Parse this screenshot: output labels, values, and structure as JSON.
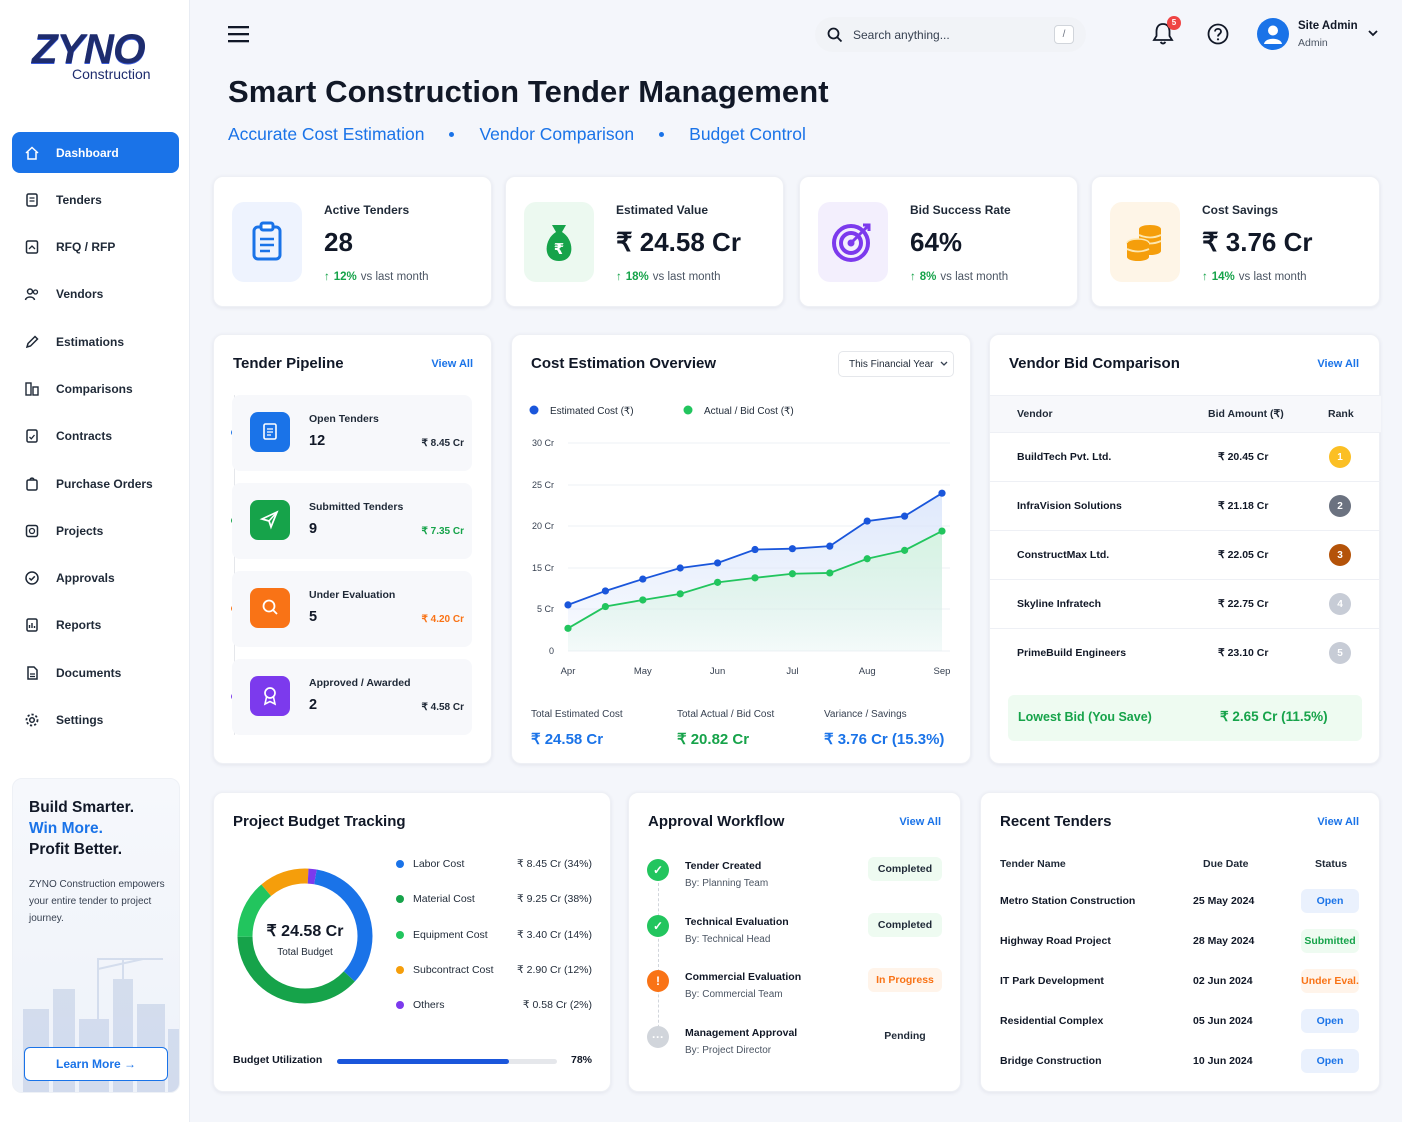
{
  "brand": {
    "logo": "ZYNO",
    "sub": "Construction"
  },
  "nav": [
    {
      "label": "Dashboard",
      "icon": "home-icon"
    },
    {
      "label": "Tenders",
      "icon": "tender-icon"
    },
    {
      "label": "RFQ / RFP",
      "icon": "rfq-icon"
    },
    {
      "label": "Vendors",
      "icon": "vendors-icon"
    },
    {
      "label": "Estimations",
      "icon": "pencil-icon"
    },
    {
      "label": "Comparisons",
      "icon": "compare-icon"
    },
    {
      "label": "Contracts",
      "icon": "contract-icon"
    },
    {
      "label": "Purchase Orders",
      "icon": "cart-icon"
    },
    {
      "label": "Projects",
      "icon": "project-icon"
    },
    {
      "label": "Approvals",
      "icon": "check-icon"
    },
    {
      "label": "Reports",
      "icon": "report-icon"
    },
    {
      "label": "Documents",
      "icon": "document-icon"
    },
    {
      "label": "Settings",
      "icon": "gear-icon"
    }
  ],
  "promo": {
    "line1": "Build Smarter.",
    "line2": "Win More.",
    "line3": "Profit Better.",
    "text": "ZYNO Construction empowers your entire tender to project journey.",
    "button": "Learn More →"
  },
  "topbar": {
    "search_placeholder": "Search anything...",
    "kbd": "/",
    "notifications": "5",
    "user_name": "Site Admin",
    "user_role": "Admin"
  },
  "page": {
    "title": "Smart Construction Tender Management",
    "tags": [
      "Accurate Cost Estimation",
      "Vendor Comparison",
      "Budget Control"
    ]
  },
  "kpis": [
    {
      "label": "Active Tenders",
      "value": "28",
      "delta": "12%",
      "delta_text": "vs last month",
      "color": "#1a73e8"
    },
    {
      "label": "Estimated Value",
      "value": "₹ 24.58 Cr",
      "delta": "18%",
      "delta_text": "vs last month",
      "color": "#16a34a"
    },
    {
      "label": "Bid Success Rate",
      "value": "64%",
      "delta": "8%",
      "delta_text": "vs last month",
      "color": "#7c3aed"
    },
    {
      "label": "Cost Savings",
      "value": "₹ 3.76 Cr",
      "delta": "14%",
      "delta_text": "vs last month",
      "color": "#f59e0b"
    }
  ],
  "pipeline": {
    "title": "Tender Pipeline",
    "view_all": "View All",
    "stages": [
      {
        "label": "Open Tenders",
        "count": "12",
        "amount": "₹ 8.45 Cr",
        "color": "#1a73e8",
        "amount_color": "#1f2937"
      },
      {
        "label": "Submitted Tenders",
        "count": "9",
        "amount": "₹ 7.35 Cr",
        "color": "#16a34a",
        "amount_color": "#16a34a"
      },
      {
        "label": "Under Evaluation",
        "count": "5",
        "amount": "₹ 4.20 Cr",
        "color": "#f97316",
        "amount_color": "#f97316"
      },
      {
        "label": "Approved / Awarded",
        "count": "2",
        "amount": "₹ 4.58 Cr",
        "color": "#7c3aed",
        "amount_color": "#1f2937"
      }
    ]
  },
  "cost": {
    "title": "Cost Estimation Overview",
    "filter": "This Financial Year",
    "summary": [
      {
        "label": "Total Estimated Cost",
        "value": "₹ 24.58 Cr",
        "color": "#1a73e8"
      },
      {
        "label": "Total Actual / Bid Cost",
        "value": "₹ 20.82 Cr",
        "color": "#16a34a"
      },
      {
        "label": "Variance / Savings",
        "value": "₹ 3.76 Cr (15.3%)",
        "color": "#1a73e8"
      }
    ]
  },
  "chart_data": {
    "type": "area",
    "x": [
      "Apr",
      "",
      "May",
      "",
      "Jun",
      "",
      "Jul",
      "",
      "Aug",
      "",
      "Sep"
    ],
    "xticks": [
      "Apr",
      "May",
      "Jun",
      "Jul",
      "Aug",
      "Sep"
    ],
    "yticks": [
      "30 Cr",
      "25 Cr",
      "20 Cr",
      "15 Cr",
      "5 Cr",
      "0"
    ],
    "ylim": [
      0,
      30
    ],
    "series": [
      {
        "name": "Estimated Cost (₹)",
        "color": "#1a56db",
        "values": [
          6,
          9.4,
          12.3,
          15,
          15.6,
          17.2,
          17.3,
          17.6,
          20.6,
          21.2,
          24
        ]
      },
      {
        "name": "Actual / Bid Cost (₹)",
        "color": "#22c55e",
        "values": [
          2.7,
          5.6,
          7.2,
          8.7,
          11.5,
          12.6,
          13.6,
          13.8,
          16.1,
          17.1,
          19.4
        ]
      }
    ]
  },
  "vendors": {
    "title": "Vendor Bid Comparison",
    "view_all": "View All",
    "headers": [
      "Vendor",
      "Bid Amount (₹)",
      "Rank"
    ],
    "rows": [
      {
        "name": "BuildTech Pvt. Ltd.",
        "amount": "₹ 20.45 Cr",
        "rank": "1",
        "color": "#fbbf24"
      },
      {
        "name": "InfraVision Solutions",
        "amount": "₹ 21.18 Cr",
        "rank": "2",
        "color": "#6b7280"
      },
      {
        "name": "ConstructMax Ltd.",
        "amount": "₹ 22.05 Cr",
        "rank": "3",
        "color": "#b45309"
      },
      {
        "name": "Skyline Infratech",
        "amount": "₹ 22.75 Cr",
        "rank": "4",
        "color": "#c7ccd6"
      },
      {
        "name": "PrimeBuild Engineers",
        "amount": "₹ 23.10 Cr",
        "rank": "5",
        "color": "#c7ccd6"
      }
    ],
    "lowest_label": "Lowest Bid (You Save)",
    "lowest_value": "₹ 2.65 Cr (11.5%)"
  },
  "budget": {
    "title": "Project Budget Tracking",
    "total": "₹ 24.58 Cr",
    "total_label": "Total Budget",
    "items": [
      {
        "label": "Labor Cost",
        "amount": "₹ 8.45 Cr (34%)",
        "pct": 34,
        "color": "#1a73e8"
      },
      {
        "label": "Material Cost",
        "amount": "₹ 9.25 Cr (38%)",
        "pct": 38,
        "color": "#16a34a"
      },
      {
        "label": "Equipment Cost",
        "amount": "₹ 3.40 Cr (14%)",
        "pct": 14,
        "color": "#22c55e"
      },
      {
        "label": "Subcontract Cost",
        "amount": "₹ 2.90 Cr (12%)",
        "pct": 12,
        "color": "#f59e0b"
      },
      {
        "label": "Others",
        "amount": "₹ 0.58 Cr   (2%)",
        "pct": 2,
        "color": "#7c3aed"
      }
    ],
    "utilization_label": "Budget Utilization",
    "utilization": "78%",
    "utilization_value": 0.78
  },
  "workflow": {
    "title": "Approval Workflow",
    "view_all": "View All",
    "steps": [
      {
        "title": "Tender Created",
        "by": "By: Planning Team",
        "status": "Completed",
        "state": "done"
      },
      {
        "title": "Technical Evaluation",
        "by": "By: Technical Head",
        "status": "Completed",
        "state": "done"
      },
      {
        "title": "Commercial Evaluation",
        "by": "By: Commercial Team",
        "status": "In Progress",
        "state": "progress"
      },
      {
        "title": "Management Approval",
        "by": "By: Project Director",
        "status": "Pending",
        "state": "pending"
      }
    ]
  },
  "recent": {
    "title": "Recent Tenders",
    "view_all": "View All",
    "headers": [
      "Tender Name",
      "Due Date",
      "Status"
    ],
    "rows": [
      {
        "name": "Metro Station Construction",
        "date": "25 May 2024",
        "status": "Open",
        "kind": "open"
      },
      {
        "name": "Highway Road Project",
        "date": "28 May 2024",
        "status": "Submitted",
        "kind": "submitted"
      },
      {
        "name": "IT Park Development",
        "date": "02 Jun 2024",
        "status": "Under Eval.",
        "kind": "eval"
      },
      {
        "name": "Residential Complex",
        "date": "05 Jun 2024",
        "status": "Open",
        "kind": "open"
      },
      {
        "name": "Bridge Construction",
        "date": "10 Jun 2024",
        "status": "Open",
        "kind": "open"
      }
    ]
  }
}
